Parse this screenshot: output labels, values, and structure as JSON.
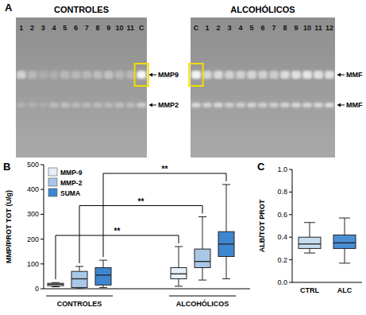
{
  "panel_labels": [
    "A",
    "B",
    "C"
  ],
  "gels": [
    {
      "title": "CONTROLES",
      "lanes": [
        "1",
        "2",
        "3",
        "4",
        "5",
        "6",
        "7",
        "8",
        "9",
        "10",
        "11",
        "C"
      ],
      "highlight": "C",
      "bands": [
        {
          "label": "MMP9",
          "intensity": [
            0.55,
            0.3,
            0.2,
            0.2,
            0.3,
            0.3,
            0.3,
            0.35,
            0.4,
            0.3,
            0.3,
            0.9
          ]
        },
        {
          "label": "MMP2",
          "intensity": [
            0.2,
            0.2,
            0.15,
            0.3,
            0.35,
            0.3,
            0.3,
            0.3,
            0.3,
            0.35,
            0.3,
            0.5
          ]
        }
      ]
    },
    {
      "title": "ALCOHÓLICOS",
      "lanes": [
        "C",
        "1",
        "2",
        "3",
        "4",
        "5",
        "6",
        "7",
        "8",
        "9",
        "10",
        "11",
        "12"
      ],
      "highlight": "C",
      "bands": [
        {
          "label": "MMF",
          "intensity": [
            0.9,
            0.6,
            0.65,
            0.55,
            0.55,
            0.6,
            0.55,
            0.5,
            0.65,
            0.7,
            0.75,
            0.7,
            0.7
          ]
        },
        {
          "label": "MMF",
          "intensity": [
            0.6,
            0.55,
            0.6,
            0.5,
            0.5,
            0.55,
            0.5,
            0.5,
            0.55,
            0.6,
            0.6,
            0.6,
            0.65
          ]
        }
      ]
    }
  ],
  "chart_data": [
    {
      "type": "box",
      "y_label": "MMP/PROT TOT (U/g)",
      "categories": [
        "CONTROLES",
        "ALCOHÓLICOS"
      ],
      "ylim": [
        0,
        500
      ],
      "yticks": [
        0,
        100,
        200,
        300,
        400,
        500
      ],
      "legend": "top-left",
      "series": [
        {
          "name": "MMP-9",
          "color": "#e6f0fa",
          "values": [
            {
              "min": 8,
              "q1": 12,
              "median": 18,
              "q3": 22,
              "max": 25
            },
            {
              "min": 10,
              "q1": 40,
              "median": 60,
              "q3": 85,
              "max": 170
            }
          ]
        },
        {
          "name": "MMP-2",
          "color": "#a9c8e8",
          "values": [
            {
              "min": 0,
              "q1": 5,
              "median": 40,
              "q3": 70,
              "max": 90
            },
            {
              "min": 35,
              "q1": 85,
              "median": 110,
              "q3": 160,
              "max": 290
            }
          ]
        },
        {
          "name": "SUMA",
          "color": "#3f86d0",
          "values": [
            {
              "min": 5,
              "q1": 15,
              "median": 55,
              "q3": 85,
              "max": 115
            },
            {
              "min": 40,
              "q1": 130,
              "median": 180,
              "q3": 230,
              "max": 420
            }
          ]
        }
      ],
      "annotations": [
        {
          "text": "**",
          "series": "MMP-9"
        },
        {
          "text": "**",
          "series": "MMP-2"
        },
        {
          "text": "**",
          "series": "SUMA"
        }
      ]
    },
    {
      "type": "box",
      "y_label": "ALB/TOT PROT",
      "categories": [
        "CTRL",
        "ALC"
      ],
      "colors": [
        "#c8dcf1",
        "#4a8fd6"
      ],
      "ylim": [
        0,
        1
      ],
      "yticks": [
        {
          "value": 0,
          "label": "0.0"
        },
        {
          "value": 0.2,
          "label": "0.2"
        },
        {
          "value": 0.4,
          "label": "0.4"
        },
        {
          "value": 0.6,
          "label": "0.6"
        },
        {
          "value": 0.8,
          "label": "0.8"
        },
        {
          "value": 1,
          "label": "1.0"
        }
      ],
      "values": [
        {
          "min": 0.26,
          "q1": 0.3,
          "median": 0.34,
          "q3": 0.4,
          "max": 0.53
        },
        {
          "min": 0.17,
          "q1": 0.3,
          "median": 0.35,
          "q3": 0.42,
          "max": 0.57
        }
      ]
    }
  ]
}
